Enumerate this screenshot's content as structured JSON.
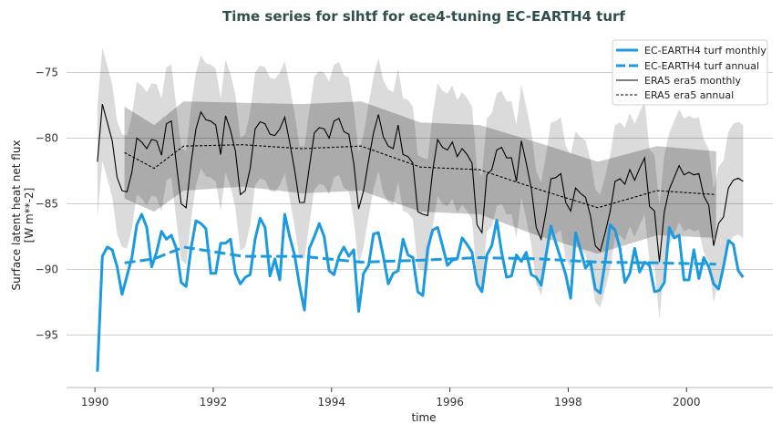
{
  "chart_data": {
    "type": "line",
    "title": "Time series for slhtf for ece4-tuning EC-EARTH4 turf",
    "xlabel": "time",
    "ylabel": [
      "Surface latent heat net flux",
      "[W m**-2]"
    ],
    "xlim": [
      1989.52,
      2001.46
    ],
    "ylim": [
      -99.0,
      -72.6
    ],
    "xticks": [
      1990,
      1992,
      1994,
      1996,
      1998,
      2000
    ],
    "xtick_labels": [
      "1990",
      "1992",
      "1994",
      "1996",
      "1998",
      "2000"
    ],
    "yticks": [
      -75,
      -80,
      -85,
      -90,
      -95
    ],
    "ytick_labels": [
      "−75",
      "−80",
      "−85",
      "−90",
      "−95"
    ],
    "grid": "horizontal",
    "legend_position": "top-right",
    "monthly_start": "1990-01",
    "series": [
      {
        "name": "EC-EARTH4 turf monthly",
        "style": "solid-thick",
        "color": "#1b9ae0",
        "frequency": "monthly",
        "values": [
          -97.8,
          -89.0,
          -88.3,
          -88.5,
          -89.8,
          -91.9,
          -90.5,
          -89.1,
          -86.6,
          -85.8,
          -86.8,
          -89.8,
          -88.7,
          -87.1,
          -87.7,
          -87.4,
          -88.4,
          -91.0,
          -91.3,
          -88.4,
          -86.3,
          -86.5,
          -86.9,
          -90.3,
          -90.3,
          -88.0,
          -88.0,
          -87.7,
          -90.3,
          -91.1,
          -90.6,
          -90.4,
          -87.7,
          -86.1,
          -86.8,
          -90.5,
          -89.2,
          -90.8,
          -85.8,
          -87.5,
          -88.9,
          -91.2,
          -93.1,
          -88.4,
          -87.5,
          -86.5,
          -87.5,
          -90.1,
          -90.4,
          -89.0,
          -88.3,
          -89.0,
          -88.5,
          -93.2,
          -90.3,
          -89.7,
          -87.3,
          -87.2,
          -89.0,
          -91.1,
          -90.3,
          -90.1,
          -87.7,
          -88.9,
          -89.1,
          -91.7,
          -92.0,
          -88.4,
          -87.0,
          -86.8,
          -88.2,
          -89.7,
          -89.3,
          -89.2,
          -87.6,
          -88.1,
          -88.7,
          -91.1,
          -91.7,
          -88.9,
          -88.2,
          -86.25,
          -88.7,
          -90.6,
          -90.5,
          -88.9,
          -89.4,
          -88.7,
          -90.4,
          -90.6,
          -91.2,
          -88.9,
          -86.7,
          -88.0,
          -89.2,
          -90.4,
          -92.2,
          -87.2,
          -88.5,
          -89.9,
          -89.4,
          -91.5,
          -91.8,
          -89.4,
          -86.6,
          -87.0,
          -88.4,
          -91.0,
          -90.3,
          -88.4,
          -90.2,
          -89.45,
          -89.7,
          -91.7,
          -91.6,
          -91.0,
          -86.8,
          -87.6,
          -87.4,
          -90.8,
          -90.8,
          -88.5,
          -90.7,
          -89.1,
          -89.8,
          -91.1,
          -91.5,
          -89.8,
          -87.8,
          -88.1,
          -90.1,
          -90.6
        ]
      },
      {
        "name": "EC-EARTH4 turf annual",
        "style": "dashed-thick",
        "color": "#1b9ae0",
        "frequency": "annual",
        "x": [
          1990.5,
          1991.0,
          1991.5,
          1992.5,
          1993.5,
          1994.5,
          1995.5,
          1996.5,
          1997.5,
          1998.5,
          1999.5,
          2000.5
        ],
        "values": [
          -89.5,
          -89.2,
          -88.3,
          -89.0,
          -89.0,
          -89.45,
          -89.3,
          -89.1,
          -89.2,
          -89.45,
          -89.5,
          -89.6
        ]
      },
      {
        "name": "ERA5 era5 monthly",
        "style": "solid-thin",
        "color": "#000000",
        "frequency": "monthly",
        "band_color": "#dcdcdc",
        "band_halfwidth": 4.3,
        "values": [
          -81.8,
          -77.4,
          -78.8,
          -80.2,
          -83.0,
          -84.0,
          -84.1,
          -82.6,
          -80.0,
          -80.3,
          -80.8,
          -80.1,
          -80.2,
          -81.3,
          -78.9,
          -78.7,
          -81.9,
          -85.0,
          -85.3,
          -81.9,
          -79.3,
          -78.0,
          -78.6,
          -78.7,
          -79.0,
          -81.25,
          -78.3,
          -79.4,
          -81.0,
          -84.3,
          -84.0,
          -82.3,
          -79.3,
          -78.75,
          -78.9,
          -79.7,
          -79.8,
          -79.3,
          -78.4,
          -80.3,
          -82.4,
          -84.9,
          -84.9,
          -82.2,
          -79.6,
          -79.2,
          -79.3,
          -80.0,
          -78.7,
          -78.5,
          -79.5,
          -79.7,
          -81.9,
          -85.4,
          -84.0,
          -81.7,
          -79.6,
          -78.2,
          -79.9,
          -80.6,
          -80.8,
          -79.0,
          -81.25,
          -81.4,
          -81.9,
          -85.6,
          -85.8,
          -85.9,
          -82.5,
          -80.1,
          -80.7,
          -80.9,
          -80.3,
          -81.4,
          -80.8,
          -81.25,
          -81.9,
          -86.6,
          -87.2,
          -82.8,
          -82.4,
          -80.9,
          -80.7,
          -81.5,
          -81.5,
          -83.3,
          -80.2,
          -81.9,
          -83.8,
          -86.8,
          -87.7,
          -85.6,
          -83.1,
          -83.0,
          -82.7,
          -84.9,
          -85.55,
          -83.8,
          -84.2,
          -84.5,
          -85.9,
          -88.2,
          -88.6,
          -87.2,
          -85.6,
          -83.3,
          -83.1,
          -83.5,
          -82.4,
          -83.2,
          -82.3,
          -81.5,
          -85.2,
          -85.55,
          -89.45,
          -85.6,
          -83.9,
          -83.0,
          -82.1,
          -82.8,
          -82.6,
          -82.8,
          -82.7,
          -84.4,
          -85.1,
          -88.2,
          -86.5,
          -86.0,
          -83.8,
          -83.2,
          -83.05,
          -83.3
        ]
      },
      {
        "name": "ERA5 era5 annual",
        "style": "dashed-thin",
        "color": "#000000",
        "frequency": "annual",
        "band_color": "#a8a8a8",
        "x": [
          1990.5,
          1991.0,
          1991.5,
          1992.5,
          1993.5,
          1994.5,
          1995.5,
          1996.5,
          1997.5,
          1998.5,
          1999.5,
          2000.5
        ],
        "values": [
          -81.1,
          -82.3,
          -80.6,
          -80.5,
          -80.8,
          -80.6,
          -82.2,
          -82.4,
          -83.9,
          -85.3,
          -84.0,
          -84.3
        ],
        "band_upper": [
          -77.6,
          -79.0,
          -77.2,
          -77.3,
          -77.4,
          -77.2,
          -78.8,
          -79.0,
          -80.35,
          -81.8,
          -80.6,
          -81.0
        ]
      }
    ],
    "legend": [
      {
        "label": "EC-EARTH4 turf monthly"
      },
      {
        "label": "EC-EARTH4 turf annual"
      },
      {
        "label": "ERA5 era5 monthly"
      },
      {
        "label": "ERA5 era5 annual"
      }
    ]
  }
}
